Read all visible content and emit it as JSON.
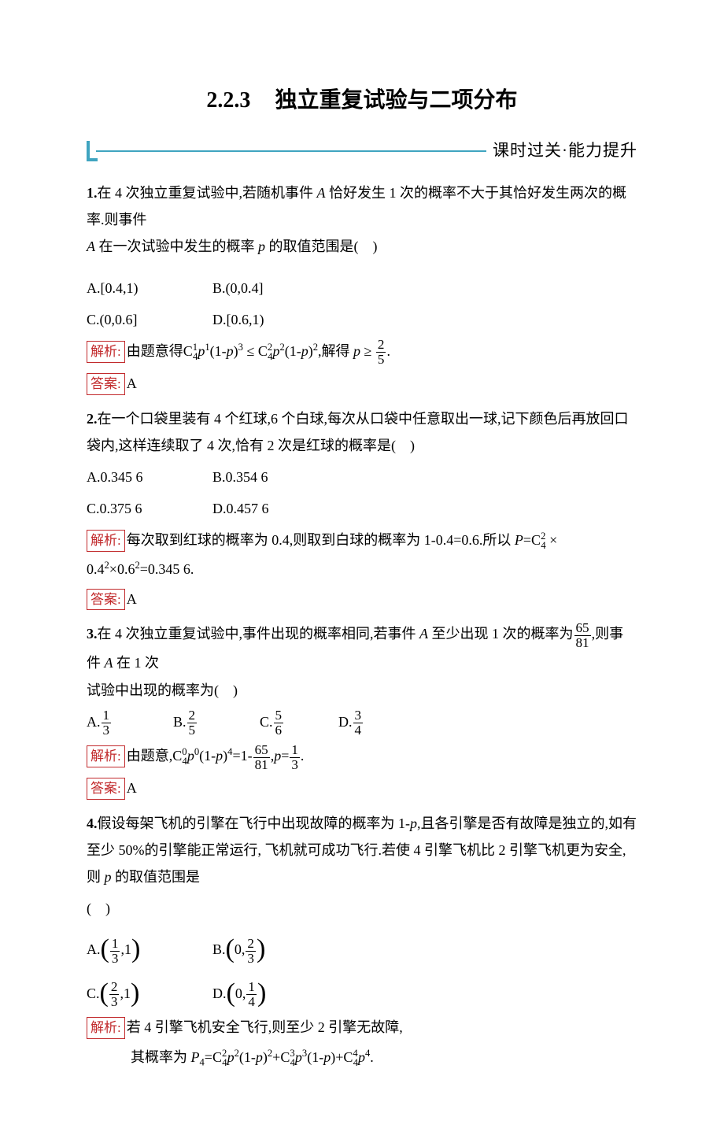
{
  "heading": {
    "section_number": "2.2.3",
    "section_title": "独立重复试验与二项分布",
    "subtitle": "课时过关·能力提升"
  },
  "colors": {
    "accent_red": "#c22b2d",
    "accent_teal": "#3fa4c0",
    "text": "#000000",
    "background": "#ffffff"
  },
  "labels": {
    "analysis": "解析:",
    "answer": "答案:"
  },
  "q1": {
    "num": "1.",
    "text_a": "在 4 次独立重复试验中,若随机事件 ",
    "text_b": " 恰好发生 1 次的概率不大于其恰好发生两次的概率.则事件",
    "text_c": " 在一次试验中发生的概率 ",
    "text_d": " 的取值范围是( )",
    "A_var": "A",
    "p_var": "p",
    "options": {
      "A": "A.[0.4,1)",
      "B": "B.(0,0.4]",
      "C": "C.(0,0.6]",
      "D": "D.[0.6,1)"
    },
    "analysis": {
      "pre": "由题意得",
      "c41": "C",
      "c41_sup": "1",
      "c41_sub": "4",
      "p1": "p",
      "e1": "1",
      "lp": "(1-",
      "rp3": ")",
      "e3": "3",
      "le": " ≤ ",
      "c42_sup": "2",
      "e2a": "2",
      "e2b": "2",
      "tail": ",解得 ",
      "geq": " ≥ ",
      "frac_n": "2",
      "frac_d": "5",
      "dot": "."
    },
    "answer": "A"
  },
  "q2": {
    "num": "2.",
    "text": "在一个口袋里装有 4 个红球,6 个白球,每次从口袋中任意取出一球,记下颜色后再放回口袋内,这样连续取了 4 次,恰有 2 次是红球的概率是( )",
    "options": {
      "A": "A.0.345 6",
      "B": "B.0.354 6",
      "C": "C.0.375 6",
      "D": "D.0.457 6"
    },
    "analysis": {
      "pre": "每次取到红球的概率为 0.4,则取到白球的概率为 1-0.4=0.6.所以 ",
      "P": "P",
      "eq": "=",
      "C": "C",
      "csup": "2",
      "csub": "4",
      "times": " × 0.4",
      "e2": "2",
      "t2": "×0.6",
      "e2b": "2",
      "tail": "=0.345 6."
    },
    "answer": "A"
  },
  "q3": {
    "num": "3.",
    "t1": "在 4 次独立重复试验中,事件出现的概率相同,若事件 ",
    "A": "A",
    "t2": " 至少出现 1 次的概率为",
    "fn": "65",
    "fd": "81",
    "t3": ",则事件 ",
    "t4": " 在 1 次",
    "t5": "试验中出现的概率为( )",
    "opts": {
      "A": {
        "p": "A.",
        "n": "1",
        "d": "3"
      },
      "B": {
        "p": "B.",
        "n": "2",
        "d": "5"
      },
      "C": {
        "p": "C.",
        "n": "5",
        "d": "6"
      },
      "D": {
        "p": "D.",
        "n": "3",
        "d": "4"
      }
    },
    "analysis": {
      "pre": "由题意,",
      "C": "C",
      "csup": "0",
      "csub": "4",
      "p": "p",
      "e0": "0",
      "lp": "(1-",
      "rp": ")",
      "e4": "4",
      "eq1": "=1-",
      "fn1": "65",
      "fd1": "81",
      "mid": ",",
      "eq2": "=",
      "fn2": "1",
      "fd2": "3",
      "dot": "."
    },
    "answer": "A"
  },
  "q4": {
    "num": "4.",
    "t1": "假设每架飞机的引擎在飞行中出现故障的概率为 1-",
    "p": "p",
    "t2": ",且各引擎是否有故障是独立的,如有至少 50%的引擎能正常运行, 飞机就可成功飞行.若使 4 引擎飞机比 2 引擎飞机更为安全,则 ",
    "t3": " 的取值范围是",
    "blank": "( )",
    "opts": {
      "A": {
        "p": "A.",
        "n": "1",
        "d": "3",
        "r": ",1"
      },
      "B": {
        "p": "B.",
        "l": "0,",
        "n": "2",
        "d": "3"
      },
      "C": {
        "p": "C.",
        "n": "2",
        "d": "3",
        "r": ",1"
      },
      "D": {
        "p": "D.",
        "l": "0,",
        "n": "1",
        "d": "4"
      }
    },
    "analysis": {
      "l1": "若 4 引擎飞机安全飞行,则至少 2 引擎无故障,",
      "l2_pre": "其概率为 ",
      "P4": "P",
      "sub4": "4",
      "eq": "=",
      "C": "C",
      "s2": "2",
      "s4": "4",
      "p": "p",
      "lp": "(1-",
      "rp": ")",
      "s3": "3",
      "plus": "+",
      "dot": "."
    }
  }
}
